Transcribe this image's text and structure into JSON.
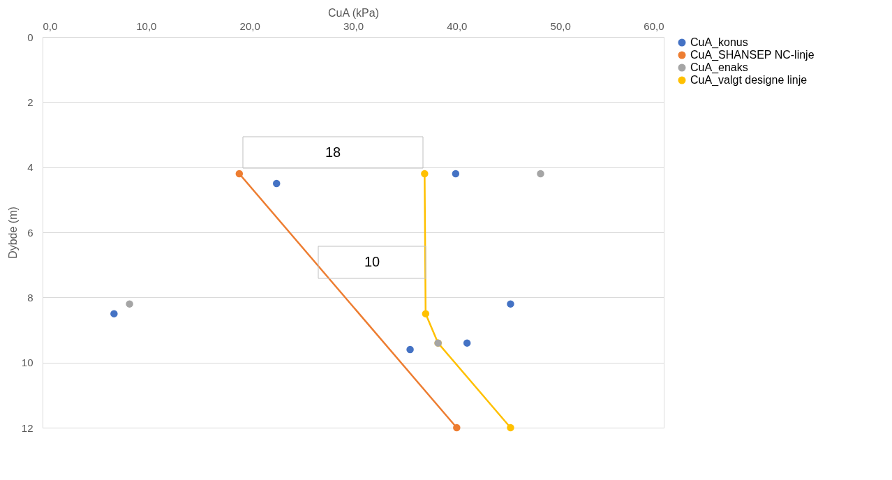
{
  "chart_data": {
    "type": "scatter",
    "xlabel": "CuA (kPa)",
    "ylabel": "Dybde (m)",
    "xlim": [
      0,
      60
    ],
    "xticks": [
      {
        "value": 0,
        "label": "0,0"
      },
      {
        "value": 10,
        "label": "10,0"
      },
      {
        "value": 20,
        "label": "20,0"
      },
      {
        "value": 30,
        "label": "30,0"
      },
      {
        "value": 40,
        "label": "40,0"
      },
      {
        "value": 50,
        "label": "50,0"
      },
      {
        "value": 60,
        "label": "60,0"
      }
    ],
    "ylim": [
      12,
      0
    ],
    "yticks": [
      0,
      2,
      4,
      6,
      8,
      10,
      12
    ],
    "grid": "y",
    "legend": "right",
    "marker": "circle",
    "series": [
      {
        "name": "CuA_konus",
        "type": "scatter",
        "color": "#4472c4",
        "x": [
          39.9,
          22.6,
          6.9,
          45.2,
          41.0,
          35.5
        ],
        "values": [
          4.2,
          4.5,
          8.5,
          8.2,
          9.4,
          9.6
        ]
      },
      {
        "name": "CuA_SHANSEP NC-linje",
        "type": "line",
        "color": "#ed7d31",
        "x": [
          19.0,
          40.0
        ],
        "values": [
          4.2,
          12
        ]
      },
      {
        "name": "CuA_enaks",
        "type": "scatter",
        "color": "#a5a5a5",
        "x": [
          48.1,
          8.4,
          38.2
        ],
        "values": [
          4.2,
          8.2,
          9.4
        ]
      },
      {
        "name": "CuA_valgt designe linje",
        "type": "line",
        "color": "#ffc000",
        "x": [
          36.9,
          37.0,
          38.2,
          45.2
        ],
        "values": [
          4.2,
          8.5,
          9.4,
          12
        ]
      }
    ],
    "annotations": [
      "18",
      "10"
    ]
  }
}
